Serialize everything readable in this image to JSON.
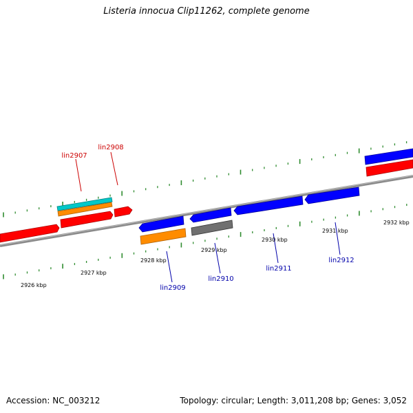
{
  "title": "Listeria innocua Clip11262, complete genome",
  "footer": {
    "accession": "Accession: NC_003212",
    "summary": "Topology: circular; Length: 3,011,208 bp; Genes: 3,052"
  },
  "colors": {
    "red": "#ff0000",
    "blue": "#0000ff",
    "orange": "#ff8c00",
    "cyan": "#00c8c8",
    "gray": "#707070",
    "tick": "#2e8b2e",
    "label_red": "#cc0000",
    "label_blue": "#0000aa"
  },
  "kbp_labels": [
    "2926 kbp",
    "2927 kbp",
    "2928 kbp",
    "2929 kbp",
    "2930 kbp",
    "2931 kbp",
    "2932 kbp"
  ],
  "gene_labels": [
    {
      "name": "lin2907",
      "strand": "forward"
    },
    {
      "name": "lin2908",
      "strand": "forward"
    },
    {
      "name": "lin2909",
      "strand": "reverse"
    },
    {
      "name": "lin2910",
      "strand": "reverse"
    },
    {
      "name": "lin2911",
      "strand": "reverse"
    },
    {
      "name": "lin2912",
      "strand": "reverse"
    }
  ]
}
